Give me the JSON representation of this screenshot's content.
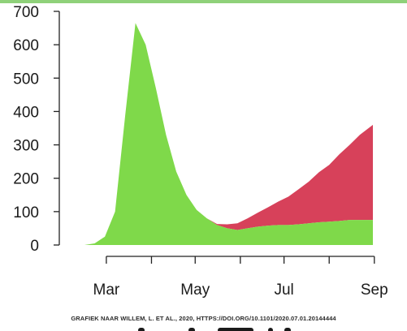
{
  "chart_data": {
    "type": "area",
    "stacked": true,
    "x_axis": {
      "ticks": [
        "Mar",
        "",
        "May",
        "",
        "Jul",
        "",
        "Sep"
      ],
      "range": [
        "Feb 15",
        "Aug 31"
      ]
    },
    "y_axis": {
      "ticks": [
        0,
        100,
        200,
        300,
        400,
        500,
        600,
        700
      ],
      "ylim": [
        0,
        700
      ]
    },
    "x": [
      "Feb 15",
      "Feb 22",
      "Feb 29",
      "Mar 7",
      "Mar 14",
      "Mar 21",
      "Mar 28",
      "Apr 4",
      "Apr 11",
      "Apr 18",
      "Apr 25",
      "May 2",
      "May 9",
      "May 16",
      "May 23",
      "May 30",
      "Jun 6",
      "Jun 13",
      "Jun 20",
      "Jun 27",
      "Jul 4",
      "Jul 11",
      "Jul 18",
      "Jul 25",
      "Aug 1",
      "Aug 8",
      "Aug 15",
      "Aug 22",
      "Aug 31"
    ],
    "series": [
      {
        "color": "#7fd94a",
        "values": [
          0,
          5,
          25,
          100,
          390,
          665,
          600,
          470,
          330,
          220,
          150,
          105,
          80,
          60,
          50,
          45,
          50,
          55,
          58,
          60,
          60,
          62,
          65,
          68,
          70,
          72,
          75,
          75,
          75
        ]
      },
      {
        "color": "#d7415a",
        "values": [
          0,
          0,
          0,
          0,
          0,
          0,
          0,
          0,
          0,
          0,
          0,
          0,
          0,
          3,
          12,
          20,
          30,
          42,
          55,
          70,
          85,
          105,
          125,
          150,
          170,
          200,
          225,
          255,
          285
        ]
      }
    ]
  },
  "credit": "GRAFIEK NAAR WILLEM, L. ET AL., 2020, HTTPS://DOI.ORG/10.1101/2020.07.01.20144444"
}
